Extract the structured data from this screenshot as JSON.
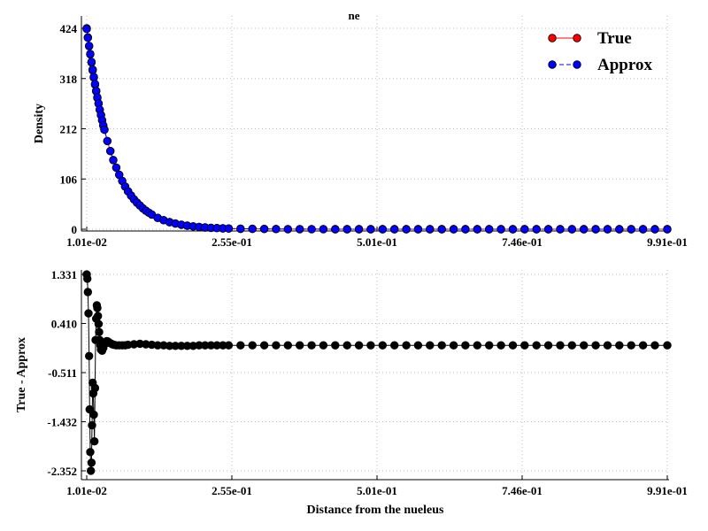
{
  "chart_data": [
    {
      "type": "line",
      "title": "ne",
      "xlabel": "",
      "ylabel": "Density",
      "xlim": [
        0.0101,
        0.991
      ],
      "ylim": [
        0,
        424
      ],
      "x_ticks": [
        "1.01e-02",
        "2.55e-01",
        "5.01e-01",
        "7.46e-01",
        "9.91e-01"
      ],
      "y_ticks": [
        "0",
        "106",
        "212",
        "318",
        "424"
      ],
      "grid": true,
      "legend_position": "top-right",
      "series": [
        {
          "name": "True",
          "color": "#ff0000",
          "marker": "circle",
          "x": [
            0.0101,
            0.0121,
            0.0141,
            0.0161,
            0.0181,
            0.0201,
            0.0221,
            0.0241,
            0.0261,
            0.0281,
            0.0301,
            0.0321,
            0.0341,
            0.0361,
            0.0381,
            0.04,
            0.045,
            0.05,
            0.055,
            0.06,
            0.065,
            0.07,
            0.075,
            0.08,
            0.085,
            0.09,
            0.095,
            0.1,
            0.105,
            0.11,
            0.115,
            0.12,
            0.13,
            0.14,
            0.15,
            0.16,
            0.17,
            0.18,
            0.19,
            0.2,
            0.21,
            0.22,
            0.23,
            0.24,
            0.25,
            0.27,
            0.29,
            0.31,
            0.33,
            0.35,
            0.37,
            0.39,
            0.41,
            0.43,
            0.45,
            0.47,
            0.49,
            0.51,
            0.53,
            0.55,
            0.57,
            0.59,
            0.61,
            0.63,
            0.65,
            0.67,
            0.69,
            0.71,
            0.73,
            0.75,
            0.77,
            0.79,
            0.81,
            0.83,
            0.85,
            0.87,
            0.89,
            0.91,
            0.93,
            0.95,
            0.97,
            0.991
          ],
          "values": [
            424,
            405,
            386,
            369,
            352,
            335,
            320,
            305,
            291,
            277,
            265,
            252,
            241,
            230,
            219,
            210,
            186,
            165,
            146,
            130,
            115,
            102,
            90,
            80,
            71,
            63,
            56,
            50,
            44,
            39,
            35,
            31,
            24,
            19,
            15,
            12,
            9.5,
            7.5,
            6,
            4.8,
            3.8,
            3,
            2.4,
            1.9,
            1.5,
            1,
            0.7,
            0.5,
            0.35,
            0.25,
            0.18,
            0.13,
            0.1,
            0.08,
            0.06,
            0.05,
            0.04,
            0.03,
            0.02,
            0.02,
            0.02,
            0.01,
            0.01,
            0.01,
            0.01,
            0.01,
            0.01,
            0,
            0,
            0,
            0,
            0,
            0,
            0,
            0,
            0,
            0,
            0,
            0,
            0,
            0,
            0
          ]
        },
        {
          "name": "Approx",
          "color": "#0000ff",
          "marker": "circle",
          "x": [
            0.0101,
            0.0121,
            0.0141,
            0.0161,
            0.0181,
            0.0201,
            0.0221,
            0.0241,
            0.0261,
            0.0281,
            0.0301,
            0.0321,
            0.0341,
            0.0361,
            0.0381,
            0.04,
            0.045,
            0.05,
            0.055,
            0.06,
            0.065,
            0.07,
            0.075,
            0.08,
            0.085,
            0.09,
            0.095,
            0.1,
            0.105,
            0.11,
            0.115,
            0.12,
            0.13,
            0.14,
            0.15,
            0.16,
            0.17,
            0.18,
            0.19,
            0.2,
            0.21,
            0.22,
            0.23,
            0.24,
            0.25,
            0.27,
            0.29,
            0.31,
            0.33,
            0.35,
            0.37,
            0.39,
            0.41,
            0.43,
            0.45,
            0.47,
            0.49,
            0.51,
            0.53,
            0.55,
            0.57,
            0.59,
            0.61,
            0.63,
            0.65,
            0.67,
            0.69,
            0.71,
            0.73,
            0.75,
            0.77,
            0.79,
            0.81,
            0.83,
            0.85,
            0.87,
            0.89,
            0.91,
            0.93,
            0.95,
            0.97,
            0.991
          ],
          "values": [
            422.7,
            404.0,
            387.0,
            369.8,
            353.1,
            337.0,
            321.5,
            306.5,
            292.2,
            278.3,
            265.4,
            252.4,
            241.0,
            230.0,
            219.0,
            210.0,
            186.2,
            165.0,
            145.8,
            130.0,
            115.0,
            102.0,
            90.0,
            80.0,
            71.0,
            63.0,
            56.0,
            50.0,
            44.0,
            39.0,
            35.0,
            31.0,
            24.0,
            19.0,
            15.0,
            12.0,
            9.5,
            7.5,
            6.0,
            4.8,
            3.8,
            3.0,
            2.4,
            1.9,
            1.5,
            1.0,
            0.7,
            0.5,
            0.35,
            0.25,
            0.18,
            0.13,
            0.1,
            0.08,
            0.06,
            0.05,
            0.04,
            0.03,
            0.02,
            0.02,
            0.02,
            0.01,
            0.01,
            0.01,
            0.01,
            0.01,
            0.01,
            0,
            0,
            0,
            0,
            0,
            0,
            0,
            0,
            0,
            0,
            0,
            0,
            0,
            0,
            0
          ]
        }
      ]
    },
    {
      "type": "line",
      "title": "",
      "xlabel": "Distance from the nueleus",
      "ylabel": "True - Approx",
      "xlim": [
        0.0101,
        0.991
      ],
      "ylim": [
        -2.352,
        1.331
      ],
      "x_ticks": [
        "1.01e-02",
        "2.55e-01",
        "5.01e-01",
        "7.46e-01",
        "9.91e-01"
      ],
      "y_ticks": [
        "1.331",
        "0.410",
        "-0.511",
        "-1.432",
        "-2.352"
      ],
      "grid": true,
      "series": [
        {
          "name": "",
          "color": "#000000",
          "marker": "circle",
          "x": [
            0.0101,
            0.0111,
            0.0121,
            0.0131,
            0.0141,
            0.0151,
            0.0161,
            0.0171,
            0.0181,
            0.0191,
            0.0201,
            0.0211,
            0.0221,
            0.0231,
            0.0241,
            0.0251,
            0.0261,
            0.0271,
            0.0281,
            0.0291,
            0.0301,
            0.0311,
            0.0321,
            0.0331,
            0.0341,
            0.0361,
            0.0381,
            0.0401,
            0.0421,
            0.0441,
            0.0461,
            0.0481,
            0.0501,
            0.0531,
            0.0561,
            0.0601,
            0.065,
            0.07,
            0.075,
            0.08,
            0.09,
            0.1,
            0.11,
            0.12,
            0.13,
            0.14,
            0.15,
            0.16,
            0.17,
            0.18,
            0.19,
            0.2,
            0.21,
            0.22,
            0.23,
            0.24,
            0.25,
            0.27,
            0.29,
            0.31,
            0.33,
            0.35,
            0.37,
            0.39,
            0.41,
            0.43,
            0.45,
            0.47,
            0.49,
            0.51,
            0.53,
            0.55,
            0.57,
            0.59,
            0.61,
            0.63,
            0.65,
            0.67,
            0.69,
            0.71,
            0.73,
            0.75,
            0.77,
            0.79,
            0.81,
            0.83,
            0.85,
            0.87,
            0.89,
            0.91,
            0.93,
            0.95,
            0.97,
            0.991
          ],
          "values": [
            1.33,
            1.25,
            1.0,
            0.6,
            -0.2,
            -1.2,
            -2.0,
            -2.35,
            -2.2,
            -1.5,
            -0.7,
            -0.9,
            -1.3,
            -1.8,
            -0.8,
            0.1,
            0.5,
            0.75,
            0.7,
            0.55,
            0.4,
            0.25,
            0.1,
            0.0,
            -0.08,
            -0.1,
            -0.05,
            0.02,
            0.06,
            0.08,
            0.07,
            0.05,
            0.04,
            0.02,
            0.01,
            0.0,
            0.0,
            0.0,
            0.0,
            0.01,
            0.02,
            0.03,
            0.02,
            0.01,
            0.0,
            0.0,
            -0.01,
            -0.01,
            -0.01,
            -0.01,
            -0.01,
            0.0,
            0.0,
            0.0,
            0.0,
            0.0,
            0.0,
            0.0,
            0.0,
            0.0,
            0.0,
            0.0,
            0.0,
            0.0,
            0.0,
            0.0,
            0.0,
            0.0,
            0.0,
            0.0,
            0.0,
            0.0,
            0.0,
            0.0,
            0.0,
            0.0,
            0.0,
            0.0,
            0.0,
            0.0,
            0.0,
            0.0,
            0.0,
            0.0,
            0.0,
            0.0,
            0.0,
            0.0,
            0.0,
            0.0,
            0.0,
            0.0,
            0.0,
            0.0
          ]
        }
      ]
    }
  ]
}
